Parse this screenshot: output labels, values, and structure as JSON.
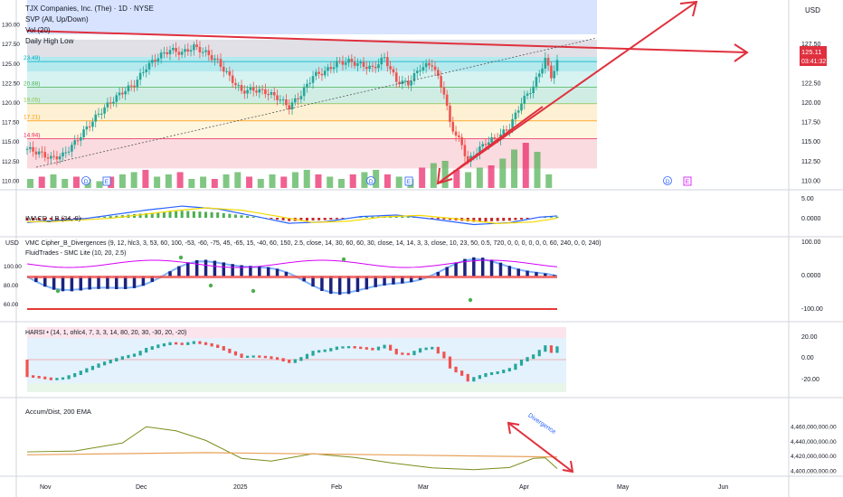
{
  "header": {
    "title": "TJX Companies, Inc. (The) · 1D · NYSE",
    "indicators": [
      "SVP (All, Up/Down)",
      "Vol (20)",
      "Daily High Low"
    ]
  },
  "price_axis": {
    "currency": "USD",
    "ticks": [
      "130.00",
      "127.50",
      "125.00",
      "122.50",
      "120.00",
      "117.50",
      "115.00",
      "112.50",
      "110.00"
    ],
    "right_ticks": [
      "127.50",
      "125.00",
      "122.50",
      "120.00",
      "117.50",
      "115.00",
      "112.50",
      "110.00"
    ],
    "last_price": "125.11",
    "countdown": "03:41:32"
  },
  "fib_levels": [
    "23.49)",
    "20.88)",
    "19.05)",
    "17.21)",
    "14.94)"
  ],
  "event_markers": [
    "D",
    "E",
    "D",
    "E",
    "D",
    "E",
    "D",
    "E"
  ],
  "macd_panel": {
    "label": "IMACD_LB (34, 9)",
    "ticks": [
      "5.00",
      "0.0000"
    ]
  },
  "vmc_panel": {
    "label": "VMC Cipher_B_Divergences (9, 12, hlc3, 3, 53, 60, 100, -53, -60, -75, 45, -65, 15, -40, 60, 150, 2.5, close, 14, 30, 60, 60, 30, close, 14, 14, 3, 3, close, 10, 23, 50, 0.5, 720, 0, 0, 0, 0, 0, 0, 60, 240, 0, 0, 240)",
    "label2": "FluidTrades - SMC Lite (10, 20, 2.5)",
    "currency": "USD",
    "left_ticks": [
      "100.00",
      "80.00",
      "60.00"
    ],
    "right_ticks": [
      "100.00",
      "0.0000",
      "-100.00"
    ]
  },
  "harsi_panel": {
    "label": "HARSI • (14, 1, ohlc4, 7, 3, 3, 14, 80, 20, 30, -30, 20, -20)",
    "ticks": [
      "20.00",
      "0.00",
      "-20.00"
    ]
  },
  "accdist_panel": {
    "label": "Accum/Dist, 200 EMA",
    "ticks": [
      "4,460,000,000.00",
      "4,440,000,000.00",
      "4,420,000,000.00",
      "4,400,000,000.00"
    ],
    "annotation": "Divergence"
  },
  "time_axis": {
    "labels": [
      "Nov",
      "Dec",
      "2025",
      "Feb",
      "Mar",
      "Apr",
      "May",
      "Jun"
    ]
  },
  "colors": {
    "up": "#26a69a",
    "down": "#ef5350",
    "trend": "#e0303e",
    "macd": "#2962ff",
    "signal": "#f5d800",
    "ad": "#7a8c1a",
    "ema": "#e8a15a"
  },
  "chart_data": {
    "type": "candlestick",
    "symbol": "TJX",
    "interval": "1D",
    "ylim": [
      109,
      131
    ],
    "x_labels": [
      "Nov",
      "Dec",
      "2025",
      "Feb",
      "Mar",
      "Apr",
      "May",
      "Jun"
    ],
    "close_approx": [
      [
        0,
        114.0
      ],
      [
        4,
        113.5
      ],
      [
        8,
        112.8
      ],
      [
        12,
        113.2
      ],
      [
        16,
        114.8
      ],
      [
        20,
        116.7
      ],
      [
        24,
        118.5
      ],
      [
        28,
        120.0
      ],
      [
        32,
        121.3
      ],
      [
        36,
        122.3
      ],
      [
        40,
        124.5
      ],
      [
        44,
        125.8
      ],
      [
        48,
        126.7
      ],
      [
        52,
        126.3
      ],
      [
        56,
        127.1
      ],
      [
        60,
        126.3
      ],
      [
        64,
        125.2
      ],
      [
        68,
        123.2
      ],
      [
        72,
        121.4
      ],
      [
        76,
        121.6
      ],
      [
        80,
        121.3
      ],
      [
        84,
        120.6
      ],
      [
        88,
        119.4
      ],
      [
        92,
        121.0
      ],
      [
        96,
        123.4
      ],
      [
        100,
        123.9
      ],
      [
        104,
        125.0
      ],
      [
        108,
        125.2
      ],
      [
        112,
        124.8
      ],
      [
        116,
        124.3
      ],
      [
        120,
        125.7
      ],
      [
        124,
        122.7
      ],
      [
        128,
        122.4
      ],
      [
        132,
        124.4
      ],
      [
        136,
        124.9
      ],
      [
        140,
        121.2
      ],
      [
        142,
        117.3
      ],
      [
        144,
        115.8
      ],
      [
        146,
        114.5
      ],
      [
        148,
        112.3
      ],
      [
        150,
        113.3
      ],
      [
        154,
        114.8
      ],
      [
        158,
        115.5
      ],
      [
        162,
        116.8
      ],
      [
        166,
        120.0
      ],
      [
        170,
        122.0
      ],
      [
        174,
        125.5
      ],
      [
        176,
        123.3
      ],
      [
        178,
        125.1
      ]
    ],
    "volume_relative": [
      0.2,
      0.25,
      0.3,
      0.2,
      0.25,
      0.2,
      0.15,
      0.25,
      0.3,
      0.35,
      0.4,
      0.25,
      0.3,
      0.35,
      0.2,
      0.25,
      0.2,
      0.3,
      0.35,
      0.25,
      0.2,
      0.3,
      0.25,
      0.35,
      0.4,
      0.3,
      0.25,
      0.2,
      0.3,
      0.35,
      0.4,
      0.3,
      0.25,
      0.2,
      0.45,
      0.55,
      0.6,
      0.4,
      0.35,
      0.45,
      0.5,
      0.65,
      0.85,
      1.0,
      0.8,
      0.3
    ],
    "macd_approx": [
      [
        0,
        -1.5
      ],
      [
        20,
        -0.2
      ],
      [
        40,
        2.5
      ],
      [
        52,
        3.8
      ],
      [
        64,
        2.9
      ],
      [
        76,
        0.6
      ],
      [
        88,
        -1.8
      ],
      [
        100,
        -1.3
      ],
      [
        112,
        0.4
      ],
      [
        124,
        0.9
      ],
      [
        136,
        -0.4
      ],
      [
        150,
        -2.2
      ],
      [
        162,
        -1.6
      ],
      [
        172,
        0.2
      ],
      [
        178,
        0.6
      ]
    ],
    "accdist_approx": [
      [
        0,
        4425000000.0
      ],
      [
        16,
        4428000000.0
      ],
      [
        32,
        4438000000.0
      ],
      [
        40,
        4458000000.0
      ],
      [
        50,
        4452000000.0
      ],
      [
        60,
        4441000000.0
      ],
      [
        72,
        4418000000.0
      ],
      [
        82,
        4413000000.0
      ],
      [
        96,
        4421000000.0
      ],
      [
        110,
        4416000000.0
      ],
      [
        122,
        4411000000.0
      ],
      [
        136,
        4405000000.0
      ],
      [
        150,
        4401000000.0
      ],
      [
        162,
        4402000000.0
      ],
      [
        170,
        4415000000.0
      ],
      [
        174,
        4418000000.0
      ],
      [
        178,
        4404000000.0
      ]
    ],
    "ema200_approx": [
      [
        0,
        4421000000.0
      ],
      [
        60,
        4424000000.0
      ],
      [
        120,
        4421000000.0
      ],
      [
        178,
        4418000000.0
      ]
    ]
  }
}
